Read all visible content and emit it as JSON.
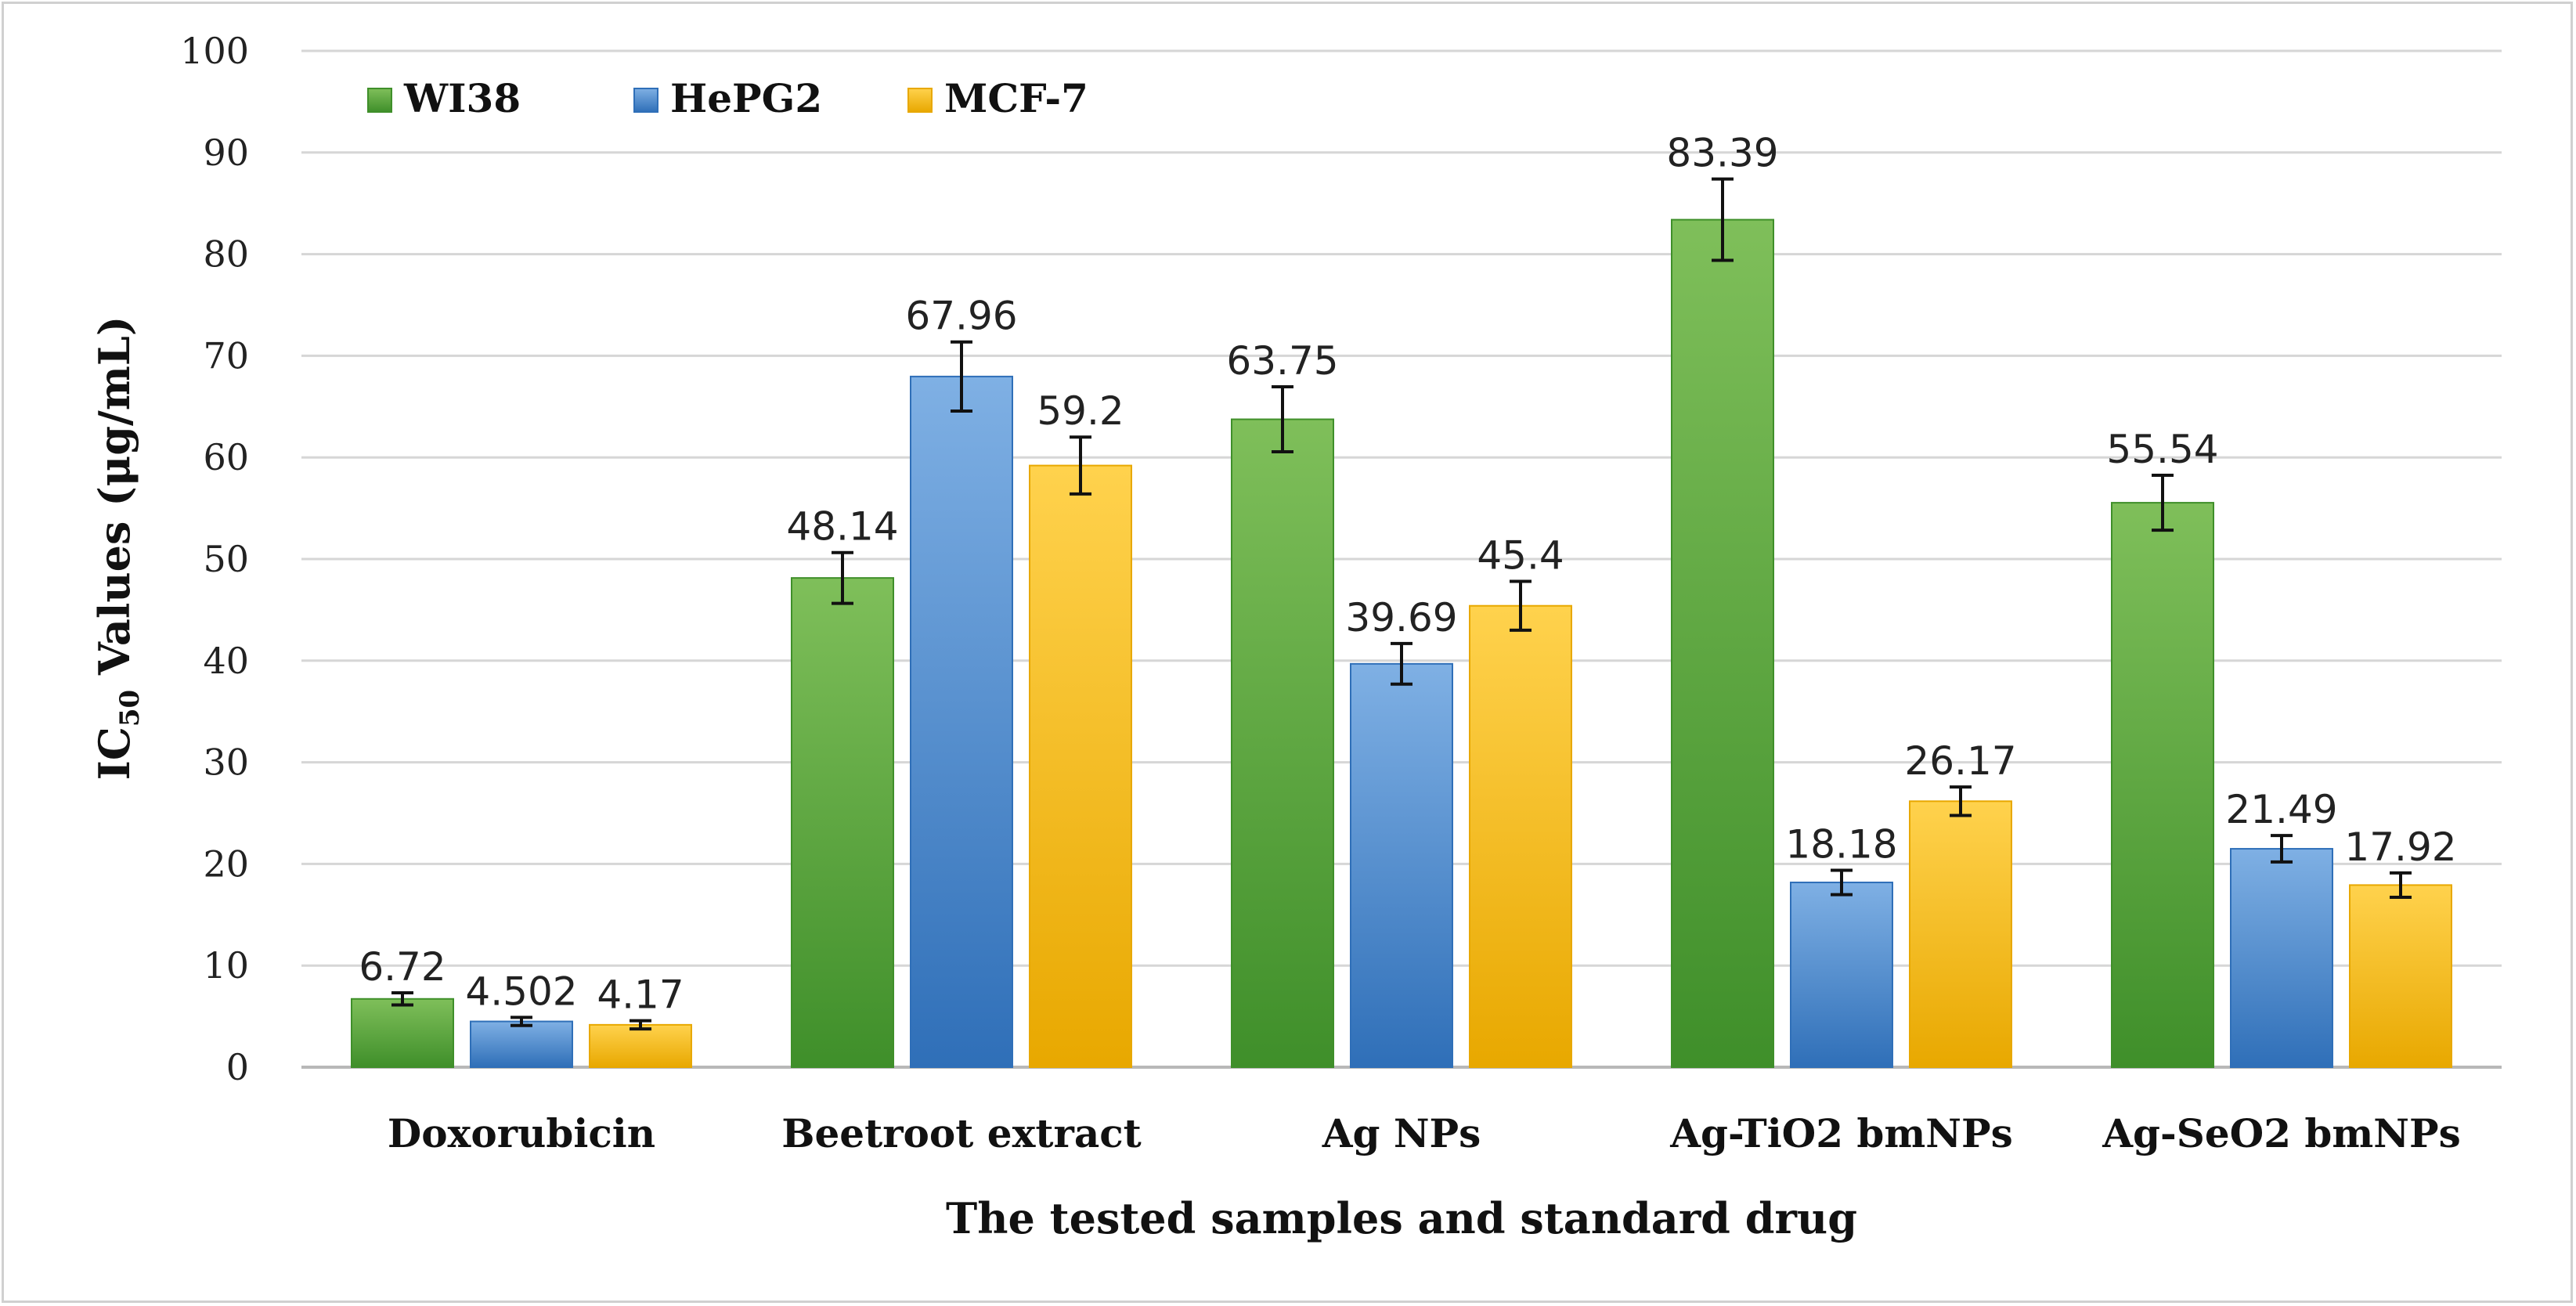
{
  "chart_data": {
    "type": "bar",
    "title": "",
    "categories": [
      "Doxorubicin",
      "Beetroot extract",
      "Ag NPs",
      "Ag-TiO2 bmNPs",
      "Ag-SeO2 bmNPs"
    ],
    "series": [
      {
        "name": "WI38",
        "color_top": "#7fbf5a",
        "color_bottom": "#3f8f2a",
        "values": [
          6.72,
          48.14,
          63.75,
          83.39,
          55.54
        ],
        "value_labels": [
          "6.72",
          "48.14",
          "63.75",
          "83.39",
          "55.54"
        ],
        "errors": [
          0.6,
          2.5,
          3.2,
          4.0,
          2.7
        ]
      },
      {
        "name": "HePG2",
        "color_top": "#7fb0e4",
        "color_bottom": "#2f6fb8",
        "values": [
          4.502,
          67.96,
          39.69,
          18.18,
          21.49
        ],
        "value_labels": [
          "4.502",
          "67.96",
          "39.69",
          "18.18",
          "21.49"
        ],
        "errors": [
          0.4,
          3.4,
          2.0,
          1.2,
          1.3
        ]
      },
      {
        "name": "MCF-7",
        "color_top": "#ffd24d",
        "color_bottom": "#e8a800",
        "values": [
          4.17,
          59.2,
          45.4,
          26.17,
          17.92
        ],
        "value_labels": [
          "4.17",
          "59.2",
          "45.4",
          "26.17",
          "17.92"
        ],
        "errors": [
          0.4,
          2.8,
          2.4,
          1.4,
          1.2
        ]
      }
    ],
    "xlabel": "The tested samples and standard drug",
    "ylabel_main": "IC",
    "ylabel_sub": "50",
    "ylabel_rest": " Values (μg/mL)",
    "ylim": [
      0,
      100
    ],
    "yticks": [
      0,
      10,
      20,
      30,
      40,
      50,
      60,
      70,
      80,
      90,
      100
    ],
    "grid": true,
    "legend_position": "top-left"
  }
}
